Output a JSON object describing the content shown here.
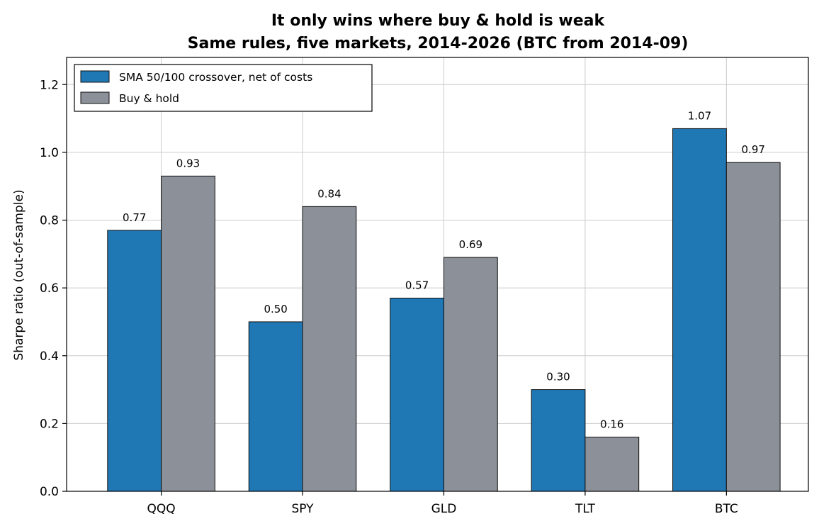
{
  "chart_data": {
    "type": "bar",
    "title": "It only wins where buy & hold is weak",
    "subtitle": "Same rules, five markets, 2014-2026 (BTC from 2014-09)",
    "xlabel": "",
    "ylabel": "Sharpe ratio (out-of-sample)",
    "categories": [
      "QQQ",
      "SPY",
      "GLD",
      "TLT",
      "BTC"
    ],
    "series": [
      {
        "name": "SMA 50/100 crossover, net of costs",
        "color": "#1f77b4",
        "values": [
          0.77,
          0.5,
          0.57,
          0.3,
          1.07
        ],
        "labels": [
          "0.77",
          "0.50",
          "0.57",
          "0.30",
          "1.07"
        ]
      },
      {
        "name": "Buy & hold",
        "color": "#8c9099",
        "values": [
          0.93,
          0.84,
          0.69,
          0.16,
          0.97
        ],
        "labels": [
          "0.93",
          "0.84",
          "0.69",
          "0.16",
          "0.97"
        ]
      }
    ],
    "ylim": [
      0,
      1.28
    ],
    "yticks": [
      0.0,
      0.2,
      0.4,
      0.6,
      0.8,
      1.0,
      1.2
    ],
    "ytick_labels": [
      "0.0",
      "0.2",
      "0.4",
      "0.6",
      "0.8",
      "1.0",
      "1.2"
    ],
    "grid": true,
    "legend_position": "top-left"
  }
}
